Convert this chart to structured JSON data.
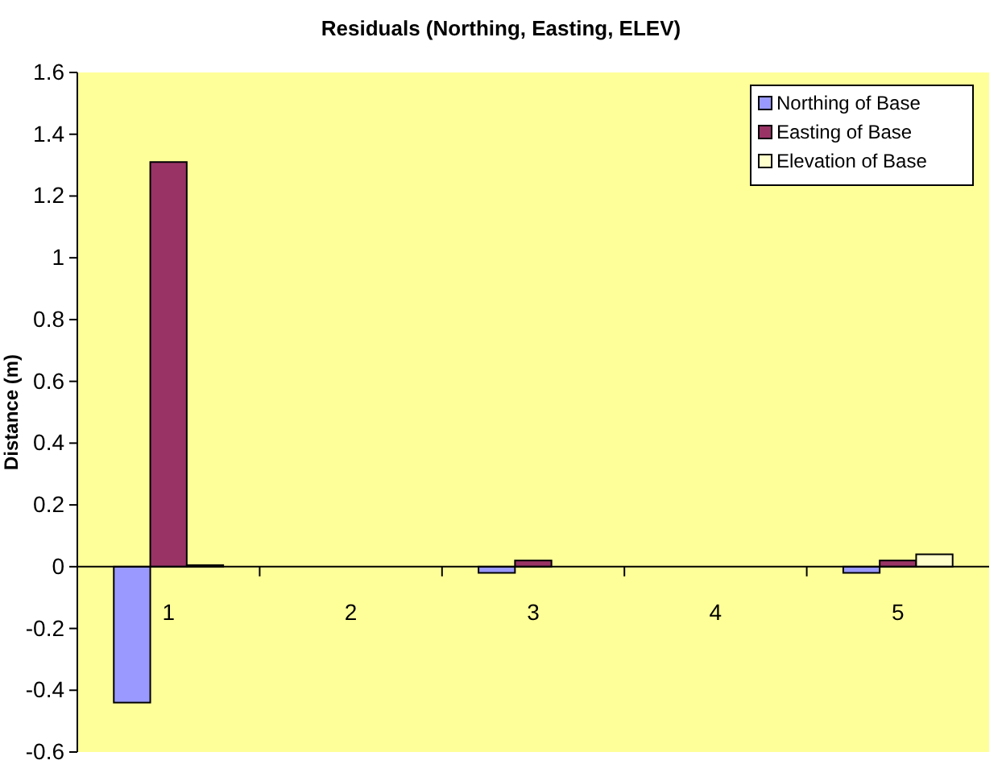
{
  "chart_data": {
    "type": "bar",
    "title": "Residuals (Northing, Easting, ELEV)",
    "ylabel": "Distance (m)",
    "categories": [
      "1",
      "2",
      "3",
      "4",
      "5"
    ],
    "series": [
      {
        "name": "Northing of Base",
        "color": "#9999ff",
        "values": [
          -0.44,
          0,
          -0.02,
          0,
          -0.02
        ]
      },
      {
        "name": "Easting of Base",
        "color": "#993366",
        "values": [
          1.31,
          0,
          0.02,
          0,
          0.02
        ]
      },
      {
        "name": "Elevation of Base",
        "color": "#ffffcc",
        "values": [
          0.005,
          0,
          0,
          0,
          0.04
        ]
      }
    ],
    "ylim": [
      -0.6,
      1.6
    ],
    "yticks": [
      -0.6,
      -0.4,
      -0.2,
      0,
      0.2,
      0.4,
      0.6,
      0.8,
      1,
      1.2,
      1.4,
      1.6
    ],
    "legend": "top right",
    "grid": false
  }
}
